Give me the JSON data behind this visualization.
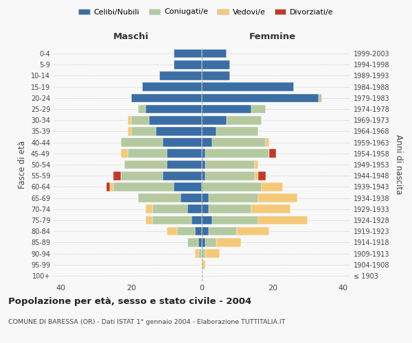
{
  "age_groups": [
    "100+",
    "95-99",
    "90-94",
    "85-89",
    "80-84",
    "75-79",
    "70-74",
    "65-69",
    "60-64",
    "55-59",
    "50-54",
    "45-49",
    "40-44",
    "35-39",
    "30-34",
    "25-29",
    "20-24",
    "15-19",
    "10-14",
    "5-9",
    "0-4"
  ],
  "birth_years": [
    "≤ 1903",
    "1904-1908",
    "1909-1913",
    "1914-1918",
    "1919-1923",
    "1924-1928",
    "1929-1933",
    "1934-1938",
    "1939-1943",
    "1944-1948",
    "1949-1953",
    "1954-1958",
    "1959-1963",
    "1964-1968",
    "1969-1973",
    "1974-1978",
    "1979-1983",
    "1984-1988",
    "1989-1993",
    "1994-1998",
    "1999-2003"
  ],
  "maschi": {
    "celibi": [
      0,
      0,
      0,
      1,
      2,
      3,
      4,
      6,
      8,
      11,
      10,
      10,
      11,
      13,
      15,
      16,
      20,
      17,
      12,
      8,
      8
    ],
    "coniugati": [
      0,
      0,
      1,
      3,
      5,
      11,
      10,
      12,
      17,
      12,
      12,
      11,
      12,
      7,
      5,
      2,
      0,
      0,
      0,
      0,
      0
    ],
    "vedovi": [
      0,
      0,
      1,
      0,
      3,
      2,
      2,
      0,
      1,
      0,
      0,
      2,
      0,
      1,
      1,
      0,
      0,
      0,
      0,
      0,
      0
    ],
    "divorziati": [
      0,
      0,
      0,
      0,
      0,
      0,
      0,
      0,
      1,
      2,
      0,
      0,
      0,
      0,
      0,
      0,
      0,
      0,
      0,
      0,
      0
    ]
  },
  "femmine": {
    "nubili": [
      0,
      0,
      0,
      1,
      2,
      3,
      2,
      2,
      0,
      1,
      1,
      1,
      3,
      4,
      7,
      14,
      33,
      26,
      8,
      8,
      7
    ],
    "coniugate": [
      0,
      0,
      1,
      3,
      8,
      13,
      12,
      14,
      17,
      14,
      14,
      18,
      15,
      12,
      10,
      4,
      1,
      0,
      0,
      0,
      0
    ],
    "vedove": [
      0,
      1,
      4,
      7,
      9,
      14,
      11,
      11,
      6,
      1,
      1,
      0,
      1,
      0,
      0,
      0,
      0,
      0,
      0,
      0,
      0
    ],
    "divorziate": [
      0,
      0,
      0,
      0,
      0,
      0,
      0,
      0,
      0,
      2,
      0,
      2,
      0,
      0,
      0,
      0,
      0,
      0,
      0,
      0,
      0
    ]
  },
  "colors": {
    "celibi_nubili": "#3a6ea5",
    "coniugati": "#b5c9a0",
    "vedovi": "#f5c97a",
    "divorziati": "#c0392b"
  },
  "xlim": 42,
  "title": "Popolazione per età, sesso e stato civile - 2004",
  "subtitle": "COMUNE DI BARESSA (OR) - Dati ISTAT 1° gennaio 2004 - Elaborazione TUTTITALIA.IT",
  "ylabel": "Fasce di età",
  "ylabel_right": "Anni di nascita",
  "maschi_label": "Maschi",
  "femmine_label": "Femmine",
  "legend_labels": [
    "Celibi/Nubili",
    "Coniugati/e",
    "Vedovi/e",
    "Divorziati/e"
  ],
  "bg_color": "#f8f8f8"
}
